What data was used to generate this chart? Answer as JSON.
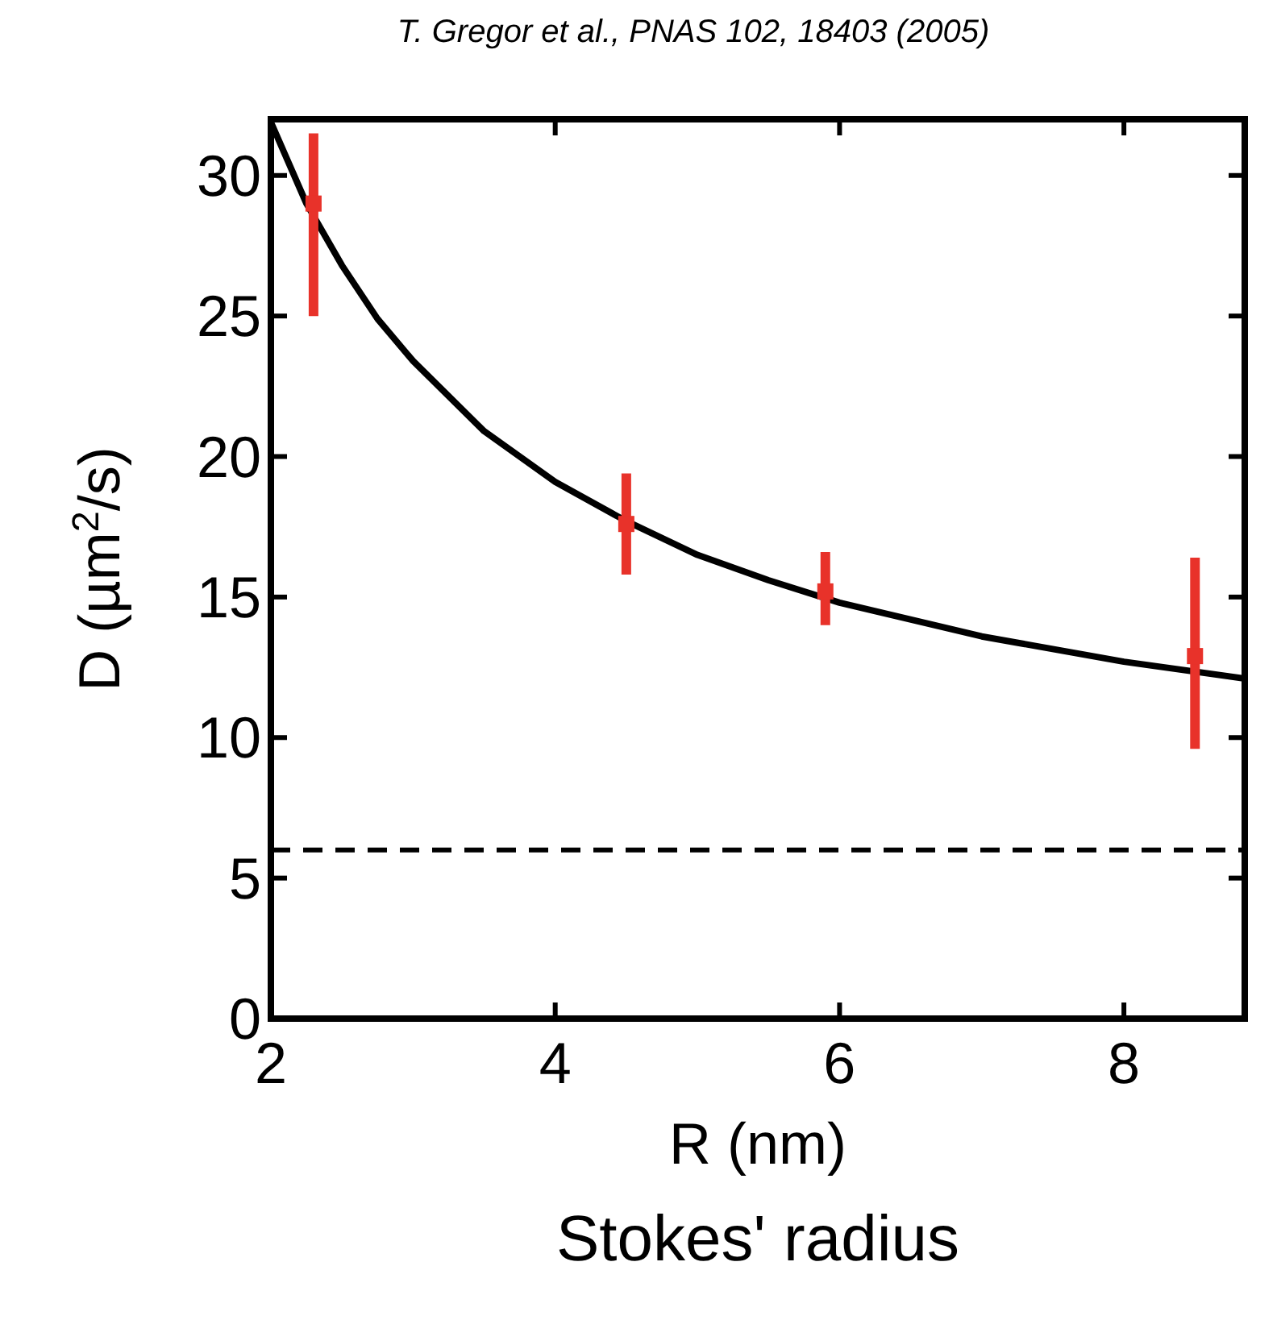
{
  "chart_data": {
    "type": "scatter",
    "title": "T. Gregor et al., PNAS 102, 18403 (2005)",
    "xlabel": "R (nm)",
    "ylabel": "D (µm$^{2}$/s)",
    "annotations": [
      "Stokes' radius"
    ],
    "xlim": [
      2,
      8.85
    ],
    "xticks": [
      2,
      4,
      6,
      8
    ],
    "ylim": [
      0,
      32
    ],
    "yticks": [
      0,
      5,
      10,
      15,
      20,
      25,
      30
    ],
    "grid": false,
    "series": [
      {
        "marker": "square",
        "color": "#e8322a",
        "x": [
          2.3,
          4.5,
          5.9,
          8.5
        ],
        "values": [
          29,
          17.6,
          15.2,
          12.9
        ],
        "errors": [
          [
            25,
            31.5
          ],
          [
            15.8,
            19.4
          ],
          [
            14,
            16.6
          ],
          [
            9.6,
            16.4
          ]
        ]
      },
      {
        "type": "line",
        "color": "#000000",
        "x": [
          2,
          2.25,
          2.5,
          2.75,
          3,
          3.5,
          4,
          4.5,
          5,
          5.5,
          6,
          7,
          8,
          8.85
        ],
        "values": [
          31.9,
          29,
          26.8,
          24.9,
          23.4,
          20.9,
          19.1,
          17.7,
          16.5,
          15.6,
          14.8,
          13.6,
          12.7,
          12.1
        ]
      }
    ],
    "ref_lines": [
      {
        "axis": "y",
        "value": 6,
        "color": "#000000",
        "line_style": "dashed"
      }
    ]
  }
}
